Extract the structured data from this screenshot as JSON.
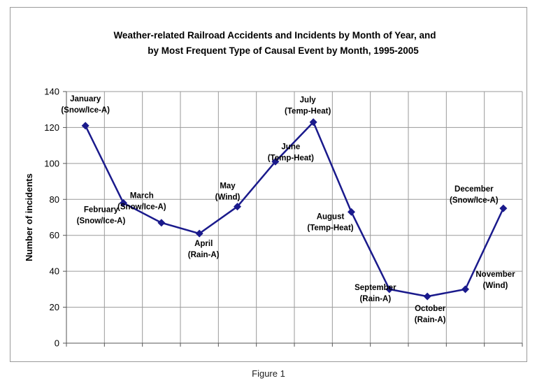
{
  "figure_caption": "Figure 1",
  "chart_data": {
    "type": "line",
    "title_lines": [
      "Weather-related Railroad Accidents and Incidents by Month of Year, and",
      "by Most Frequent Type of Causal Event by Month, 1995-2005"
    ],
    "xlabel": "",
    "ylabel": "Number of incidents",
    "ylim": [
      0,
      140
    ],
    "yticks": [
      0,
      20,
      40,
      60,
      80,
      100,
      120,
      140
    ],
    "grid": true,
    "legend": "none",
    "line_color": "#1a1a8c",
    "categories": [
      "January",
      "February",
      "March",
      "April",
      "May",
      "June",
      "July",
      "August",
      "September",
      "October",
      "November",
      "December"
    ],
    "series": [
      {
        "values": [
          121,
          78,
          67,
          61,
          76,
          101,
          123,
          73,
          30,
          26,
          30,
          75
        ]
      }
    ],
    "annotations": [
      {
        "month": "January",
        "cause": "(Snow/Ice-A)"
      },
      {
        "month": "February",
        "cause": "(Snow/Ice-A)"
      },
      {
        "month": "March",
        "cause": "(Snow/Ice-A)"
      },
      {
        "month": "April",
        "cause": "(Rain-A)"
      },
      {
        "month": "May",
        "cause": "(Wind)"
      },
      {
        "month": "June",
        "cause": "(Temp-Heat)"
      },
      {
        "month": "July",
        "cause": "(Temp-Heat)"
      },
      {
        "month": "August",
        "cause": "(Temp-Heat)"
      },
      {
        "month": "September",
        "cause": "(Rain-A)"
      },
      {
        "month": "October",
        "cause": "(Rain-A)"
      },
      {
        "month": "November",
        "cause": "(Wind)"
      },
      {
        "month": "December",
        "cause": "(Snow/Ice-A)"
      }
    ]
  }
}
